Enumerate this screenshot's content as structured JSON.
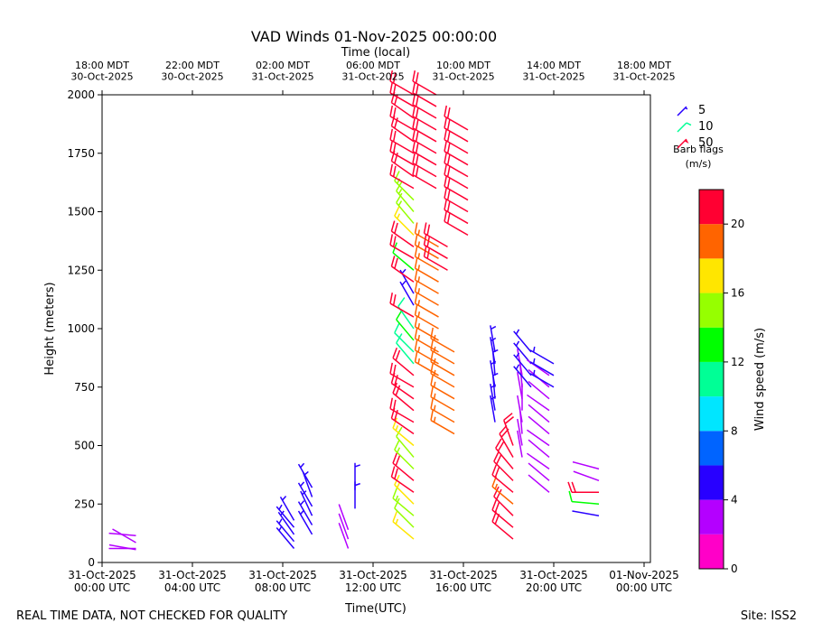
{
  "chart_data": {
    "type": "barb",
    "title": "VAD Winds 01-Nov-2025 00:00:00",
    "x2label": "Time (local)",
    "xlabel": "Time(UTC)",
    "ylabel": "Height (meters)",
    "xlim": [
      0,
      24.28
    ],
    "xticks": [
      {
        "value": 0,
        "label": "31-Oct-2025\n00:00 UTC"
      },
      {
        "value": 4,
        "label": "31-Oct-2025\n04:00 UTC"
      },
      {
        "value": 8,
        "label": "31-Oct-2025\n08:00 UTC"
      },
      {
        "value": 12,
        "label": "31-Oct-2025\n12:00 UTC"
      },
      {
        "value": 16,
        "label": "31-Oct-2025\n16:00 UTC"
      },
      {
        "value": 20,
        "label": "31-Oct-2025\n20:00 UTC"
      },
      {
        "value": 24,
        "label": "01-Nov-2025\n00:00 UTC"
      }
    ],
    "x2ticks": [
      {
        "value": 0,
        "label": "18:00 MDT\n30-Oct-2025"
      },
      {
        "value": 4,
        "label": "22:00 MDT\n30-Oct-2025"
      },
      {
        "value": 8,
        "label": "02:00 MDT\n31-Oct-2025"
      },
      {
        "value": 12,
        "label": "06:00 MDT\n31-Oct-2025"
      },
      {
        "value": 16,
        "label": "10:00 MDT\n31-Oct-2025"
      },
      {
        "value": 20,
        "label": "14:00 MDT\n31-Oct-2025"
      },
      {
        "value": 24,
        "label": "18:00 MDT\n31-Oct-2025"
      }
    ],
    "ylim": [
      0,
      2000
    ],
    "yticks": [
      0,
      250,
      500,
      750,
      1000,
      1250,
      1500,
      1750,
      2000
    ],
    "profiles": [
      {
        "x": 1.5,
        "heights": [
          55,
          60,
          85,
          115
        ],
        "speeds": [
          3,
          3,
          3,
          3
        ],
        "directions": [
          280,
          270,
          300,
          275
        ]
      },
      {
        "x": 8.5,
        "heights": [
          60,
          90,
          120,
          150,
          180
        ],
        "speeds": [
          5,
          5,
          5,
          5,
          5
        ],
        "directions": [
          320,
          320,
          325,
          320,
          330
        ]
      },
      {
        "x": 9.3,
        "heights": [
          120,
          160,
          200,
          240,
          280,
          320
        ],
        "speeds": [
          5,
          5,
          5,
          5,
          5,
          5
        ],
        "directions": [
          330,
          330,
          335,
          330,
          340,
          330
        ]
      },
      {
        "x": 10.9,
        "heights": [
          60,
          100,
          140
        ],
        "speeds": [
          3,
          3,
          3
        ],
        "directions": [
          340,
          340,
          340
        ]
      },
      {
        "x": 11.2,
        "heights": [
          230,
          310
        ],
        "speeds": [
          5,
          5
        ],
        "directions": [
          0,
          0
        ]
      },
      {
        "x": 13.8,
        "heights": [
          100,
          150,
          200,
          250,
          300,
          350,
          400,
          450,
          500,
          550,
          600,
          650,
          700,
          750,
          800,
          850,
          900,
          950,
          1000,
          1050,
          1100,
          1150,
          1200,
          1250,
          1300,
          1350,
          1400,
          1450,
          1500,
          1550,
          1600,
          1650,
          1700,
          1750,
          1800,
          1850,
          1900,
          1950,
          2000
        ],
        "speeds": [
          16,
          14,
          15,
          16,
          22,
          22,
          15,
          14,
          17,
          22,
          22,
          22,
          22,
          22,
          22,
          10,
          11,
          12,
          10,
          22,
          5,
          5,
          22,
          12,
          20,
          22,
          16,
          15,
          15,
          15,
          22,
          22,
          22,
          22,
          22,
          22,
          22,
          22,
          22
        ],
        "directions": [
          310,
          315,
          310,
          315,
          305,
          310,
          315,
          320,
          310,
          305,
          300,
          310,
          305,
          300,
          310,
          320,
          315,
          320,
          325,
          300,
          330,
          330,
          305,
          310,
          300,
          305,
          315,
          320,
          320,
          315,
          300,
          305,
          300,
          300,
          305,
          300,
          305,
          300,
          300
        ]
      },
      {
        "x": 14.9,
        "heights": [
          800,
          850,
          900,
          950,
          1000,
          1050,
          1100,
          1150,
          1200,
          1250,
          1300,
          1350
        ],
        "speeds": [
          19,
          19,
          19,
          19,
          19,
          19,
          19,
          19,
          19,
          19,
          19,
          19
        ],
        "directions": [
          300,
          300,
          300,
          300,
          300,
          300,
          300,
          300,
          300,
          300,
          300,
          300
        ]
      },
      {
        "x": 14.8,
        "heights": [
          1600,
          1650,
          1700,
          1750,
          1800,
          1850,
          1900,
          1950,
          2000
        ],
        "speeds": [
          22,
          22,
          22,
          22,
          22,
          22,
          22,
          22,
          22
        ],
        "directions": [
          300,
          300,
          300,
          300,
          300,
          300,
          300,
          300,
          300
        ]
      },
      {
        "x": 15.6,
        "heights": [
          550,
          600,
          650,
          700,
          750,
          800,
          850,
          900
        ],
        "speeds": [
          19,
          19,
          19,
          19,
          19,
          19,
          19,
          19
        ],
        "directions": [
          300,
          300,
          300,
          300,
          300,
          300,
          300,
          300
        ]
      },
      {
        "x": 15.3,
        "heights": [
          1250,
          1300,
          1350
        ],
        "speeds": [
          21,
          21,
          21
        ],
        "directions": [
          300,
          300,
          300
        ]
      },
      {
        "x": 16.2,
        "heights": [
          1400,
          1450,
          1500,
          1550,
          1600,
          1650,
          1700,
          1750,
          1800,
          1850
        ],
        "speeds": [
          22,
          22,
          22,
          22,
          22,
          22,
          22,
          22,
          22,
          22
        ],
        "directions": [
          300,
          300,
          300,
          300,
          300,
          300,
          300,
          300,
          300,
          300
        ]
      },
      {
        "x": 17.4,
        "heights": [
          600,
          650,
          700,
          750,
          800,
          850,
          900
        ],
        "speeds": [
          5,
          5,
          5,
          5,
          5,
          5,
          5
        ],
        "directions": [
          350,
          350,
          355,
          350,
          355,
          350,
          350
        ]
      },
      {
        "x": 18.2,
        "heights": [
          100,
          150,
          200,
          250,
          300,
          350,
          400,
          450,
          500
        ],
        "speeds": [
          21,
          20,
          20,
          19,
          21,
          22,
          22,
          21,
          20
        ],
        "directions": [
          310,
          310,
          315,
          310,
          310,
          315,
          320,
          330,
          340
        ]
      },
      {
        "x": 18.6,
        "heights": [
          450,
          500,
          550,
          600,
          650,
          700,
          750,
          800
        ],
        "speeds": [
          3,
          3,
          3,
          3,
          3,
          3,
          3,
          3
        ],
        "directions": [
          350,
          350,
          355,
          350,
          0,
          350,
          355,
          350
        ]
      },
      {
        "x": 19.0,
        "heights": [
          750,
          800,
          850,
          900
        ],
        "speeds": [
          5,
          5,
          5,
          5
        ],
        "directions": [
          320,
          320,
          320,
          320
        ]
      },
      {
        "x": 19.8,
        "heights": [
          300,
          350,
          400,
          450,
          500,
          550,
          600,
          650,
          700,
          750,
          800
        ],
        "speeds": [
          3,
          3,
          3,
          3,
          3,
          3,
          3,
          3,
          3,
          3,
          3
        ],
        "directions": [
          310,
          310,
          305,
          310,
          305,
          310,
          310,
          305,
          310,
          310,
          305
        ]
      },
      {
        "x": 20.0,
        "heights": [
          750,
          800,
          850
        ],
        "speeds": [
          5,
          5,
          5
        ],
        "directions": [
          300,
          300,
          300
        ]
      },
      {
        "x": 22.0,
        "heights": [
          200,
          250,
          300,
          350,
          400
        ],
        "speeds": [
          4,
          12,
          22,
          3,
          3
        ],
        "directions": [
          280,
          275,
          270,
          290,
          285
        ]
      }
    ],
    "legend_barbs": [
      5,
      10,
      50
    ],
    "legend_title": "Barb flags",
    "legend_units": "(m/s)",
    "colorbar": {
      "label": "Wind speed (m/s)",
      "clim": [
        0,
        22
      ],
      "boundaries": [
        0,
        2,
        4,
        6,
        8,
        10,
        12,
        14,
        16,
        18,
        20,
        22
      ],
      "colors": [
        "#ff00c8",
        "#b400ff",
        "#2800ff",
        "#0064ff",
        "#00e6ff",
        "#00ff96",
        "#00ff00",
        "#96ff00",
        "#ffe600",
        "#ff6400",
        "#ff0032"
      ],
      "ticks": [
        0,
        4,
        8,
        12,
        16,
        20
      ]
    },
    "footer_left": "REAL TIME DATA, NOT CHECKED FOR QUALITY",
    "footer_right": "Site: ISS2"
  }
}
